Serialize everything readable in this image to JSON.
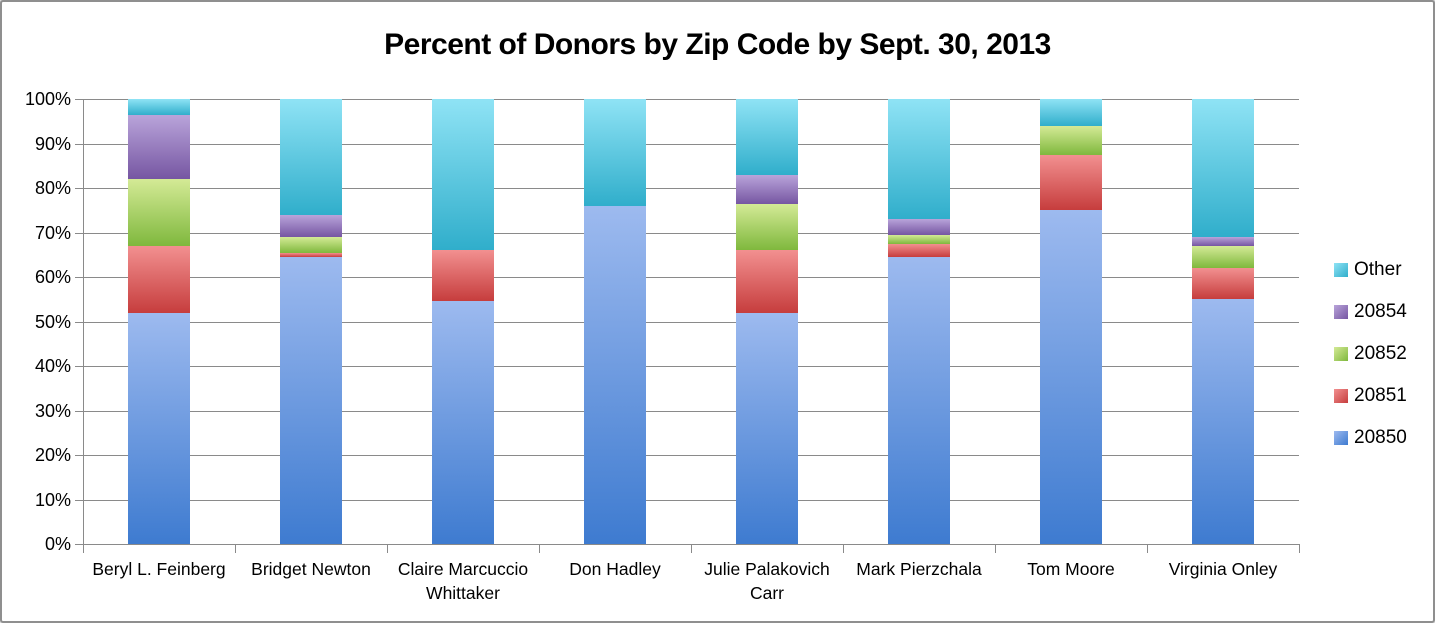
{
  "title": "Percent of Donors by Zip Code by Sept. 30, 2013",
  "chart_data": {
    "type": "bar",
    "stacked": true,
    "title": "Percent of Donors by Zip Code by Sept. 30, 2013",
    "xlabel": "",
    "ylabel": "",
    "ylim": [
      0,
      100
    ],
    "yticks": [
      "0%",
      "10%",
      "20%",
      "30%",
      "40%",
      "50%",
      "60%",
      "70%",
      "80%",
      "90%",
      "100%"
    ],
    "grid": true,
    "legend_position": "right",
    "legend_order": [
      "Other",
      "20854",
      "20852",
      "20851",
      "20850"
    ],
    "categories": [
      "Beryl L. Feinberg",
      "Bridget Newton",
      "Claire Marcuccio Whittaker",
      "Don Hadley",
      "Julie Palakovich Carr",
      "Mark Pierzchala",
      "Tom Moore",
      "Virginia Onley"
    ],
    "series": [
      {
        "name": "20850",
        "color_top": "#9dbaef",
        "color_bottom": "#3e7bd0",
        "values": [
          52,
          64.5,
          54.5,
          76,
          52,
          64.5,
          75,
          55
        ]
      },
      {
        "name": "20851",
        "color_top": "#f29090",
        "color_bottom": "#c63d3d",
        "values": [
          15,
          1,
          11.5,
          0,
          14,
          3,
          12.5,
          7
        ]
      },
      {
        "name": "20852",
        "color_top": "#d4ea96",
        "color_bottom": "#7fb83d",
        "values": [
          15,
          3.5,
          0,
          0,
          10.5,
          2,
          6.5,
          5
        ]
      },
      {
        "name": "20854",
        "color_top": "#b9a4da",
        "color_bottom": "#7656a2",
        "values": [
          14.5,
          5,
          0,
          0,
          6.5,
          3.5,
          0,
          2
        ]
      },
      {
        "name": "Other",
        "color_top": "#8fe3f5",
        "color_bottom": "#30aecb",
        "values": [
          3.5,
          26,
          34,
          24,
          17,
          27,
          6,
          31
        ]
      }
    ]
  }
}
